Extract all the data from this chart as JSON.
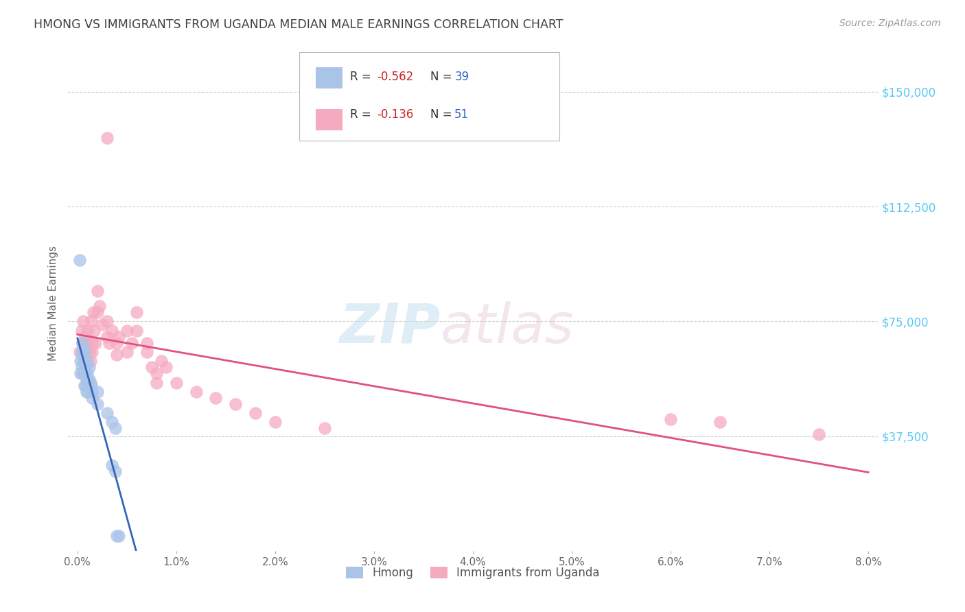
{
  "title": "HMONG VS IMMIGRANTS FROM UGANDA MEDIAN MALE EARNINGS CORRELATION CHART",
  "source": "Source: ZipAtlas.com",
  "xlabel_ticks": [
    "0.0%",
    "1.0%",
    "2.0%",
    "3.0%",
    "4.0%",
    "5.0%",
    "6.0%",
    "7.0%",
    "8.0%"
  ],
  "xlabel_vals": [
    0.0,
    0.01,
    0.02,
    0.03,
    0.04,
    0.05,
    0.06,
    0.07,
    0.08
  ],
  "ylabel": "Median Male Earnings",
  "ylabel_ticks": [
    "$150,000",
    "$112,500",
    "$75,000",
    "$37,500"
  ],
  "ylabel_vals": [
    150000,
    112500,
    75000,
    37500
  ],
  "ylim": [
    0,
    162000
  ],
  "xlim": [
    -0.001,
    0.081
  ],
  "legend_label1": "Hmong",
  "legend_label2": "Immigrants from Uganda",
  "R1": "-0.562",
  "N1": "39",
  "R2": "-0.136",
  "N2": "51",
  "color1": "#aac4e8",
  "color2": "#f5aabf",
  "line_color1": "#3565b8",
  "line_color2": "#e05080",
  "background_color": "#ffffff",
  "grid_color": "#d0d0d0",
  "title_color": "#404040",
  "right_tick_color": "#5bc8f5",
  "watermark_zip": "ZIP",
  "watermark_atlas": "atlas",
  "hmong_x": [
    0.0002,
    0.0003,
    0.0003,
    0.0004,
    0.0004,
    0.0005,
    0.0005,
    0.0005,
    0.0006,
    0.0006,
    0.0006,
    0.0007,
    0.0007,
    0.0007,
    0.0007,
    0.0008,
    0.0008,
    0.0008,
    0.0009,
    0.0009,
    0.001,
    0.001,
    0.001,
    0.001,
    0.0012,
    0.0012,
    0.0013,
    0.0014,
    0.0015,
    0.0015,
    0.002,
    0.002,
    0.003,
    0.0035,
    0.0038,
    0.0035,
    0.0038,
    0.004,
    0.0042
  ],
  "hmong_y": [
    95000,
    62000,
    58000,
    65000,
    60000,
    68000,
    64000,
    58000,
    66000,
    62000,
    58000,
    65000,
    62000,
    58000,
    54000,
    60000,
    58000,
    54000,
    56000,
    52000,
    62000,
    58000,
    55000,
    52000,
    60000,
    56000,
    55000,
    54000,
    52000,
    50000,
    52000,
    48000,
    45000,
    42000,
    40000,
    28000,
    26000,
    5000,
    5000
  ],
  "uganda_x": [
    0.0002,
    0.0004,
    0.0005,
    0.0006,
    0.0007,
    0.0008,
    0.0009,
    0.001,
    0.001,
    0.0012,
    0.0013,
    0.0014,
    0.0015,
    0.0015,
    0.0016,
    0.0017,
    0.0018,
    0.002,
    0.002,
    0.0022,
    0.0025,
    0.003,
    0.003,
    0.0032,
    0.0035,
    0.004,
    0.004,
    0.0042,
    0.005,
    0.005,
    0.0055,
    0.006,
    0.006,
    0.007,
    0.007,
    0.0075,
    0.008,
    0.008,
    0.0085,
    0.009,
    0.01,
    0.012,
    0.014,
    0.016,
    0.018,
    0.02,
    0.025,
    0.06,
    0.065,
    0.075,
    0.003
  ],
  "uganda_y": [
    65000,
    72000,
    68000,
    75000,
    65000,
    70000,
    68000,
    72000,
    66000,
    65000,
    62000,
    75000,
    68000,
    65000,
    78000,
    72000,
    68000,
    85000,
    78000,
    80000,
    74000,
    75000,
    70000,
    68000,
    72000,
    68000,
    64000,
    70000,
    65000,
    72000,
    68000,
    78000,
    72000,
    68000,
    65000,
    60000,
    58000,
    55000,
    62000,
    60000,
    55000,
    52000,
    50000,
    48000,
    45000,
    42000,
    40000,
    43000,
    42000,
    38000,
    135000
  ]
}
